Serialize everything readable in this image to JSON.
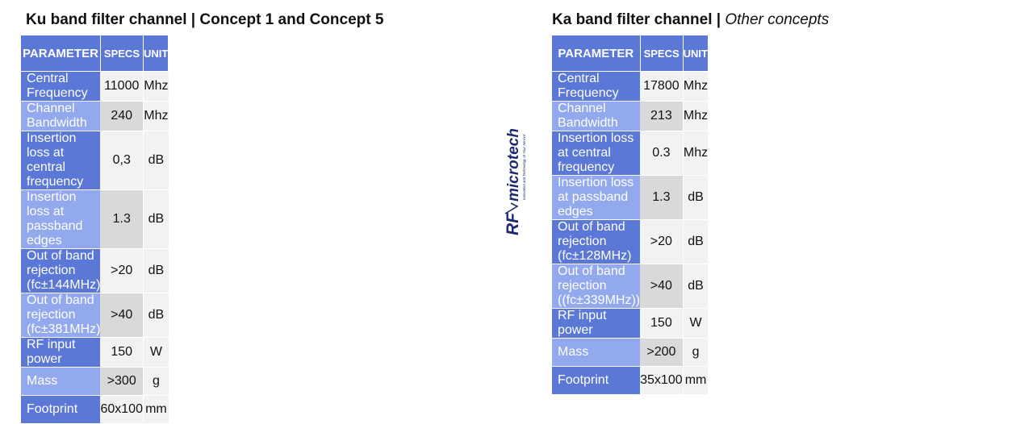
{
  "left": {
    "title": "Ku band filter channel | Concept 1 and Concept 5",
    "headers": {
      "parameter": "PARAMETER",
      "specs": "SPECS",
      "unit": "UNIT"
    },
    "rows": [
      {
        "param": "Central Frequency",
        "spec": "11000",
        "unit": "Mhz"
      },
      {
        "param": "Channel Bandwidth",
        "spec": "240",
        "unit": "Mhz"
      },
      {
        "param": "Insertion loss at central frequency",
        "spec": "0,3",
        "unit": "dB"
      },
      {
        "param": "Insertion loss at passband edges",
        "spec": "1.3",
        "unit": "dB"
      },
      {
        "param": "Out of band rejection (fc±144MHz)",
        "spec": ">20",
        "unit": "dB"
      },
      {
        "param": "Out of band rejection (fc±381MHz)",
        "spec": ">40",
        "unit": "dB"
      },
      {
        "param": "RF input power",
        "spec": "150",
        "unit": "W"
      },
      {
        "param": "Mass",
        "spec": ">300",
        "unit": "g"
      },
      {
        "param": "Footprint",
        "spec": "60x100",
        "unit": "mm"
      }
    ]
  },
  "right": {
    "title_main": "Ka band filter channel |",
    "title_sub": "Other concepts",
    "headers": {
      "parameter": "PARAMETER",
      "specs": "SPECS",
      "unit": "UNIT"
    },
    "rows": [
      {
        "param": "Central Frequency",
        "spec": "17800",
        "unit": "Mhz"
      },
      {
        "param": "Channel Bandwidth",
        "spec": "213",
        "unit": "Mhz"
      },
      {
        "param": "Insertion loss at central frequency",
        "spec": "0.3",
        "unit": "Mhz"
      },
      {
        "param": "Insertion loss at passband edges",
        "spec": "1.3",
        "unit": "dB"
      },
      {
        "param": "Out of band rejection (fc±128MHz)",
        "spec": ">20",
        "unit": "dB"
      },
      {
        "param": "Out of band rejection ((fc±339MHz))",
        "spec": ">40",
        "unit": "dB"
      },
      {
        "param": "RF input power",
        "spec": "150",
        "unit": "W"
      },
      {
        "param": "Mass",
        "spec": ">200",
        "unit": "g"
      },
      {
        "param": "Footprint",
        "spec": "35x100",
        "unit": "mm"
      }
    ]
  },
  "logo": {
    "brand_rf": "RF",
    "brand_name": "microtech",
    "tagline": "Innovation and Technology at Your Service",
    "color": "#1e2a6e"
  }
}
